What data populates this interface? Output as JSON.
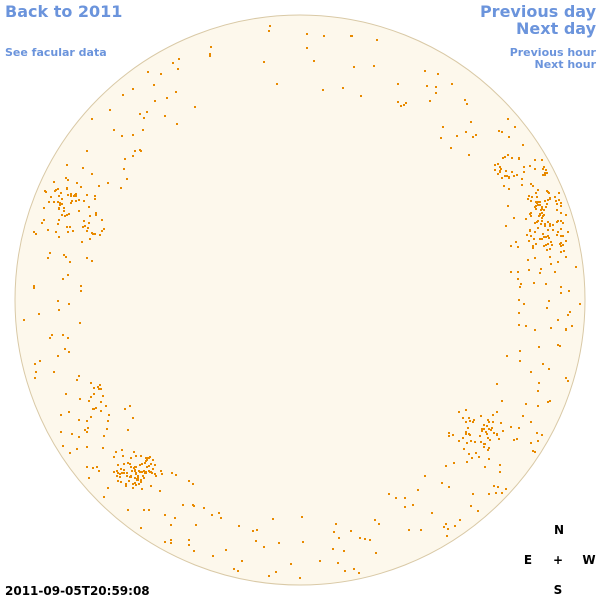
{
  "nav": {
    "back": "Back to 2011",
    "facular": "See facular data",
    "previous_day": "Previous day",
    "next_day": "Next day",
    "previous_hour": "Previous hour",
    "next_hour": "Next hour"
  },
  "timestamp": "2011-09-05T20:59:08",
  "compass": {
    "north": "N",
    "east": "E",
    "center": "+",
    "west": "W",
    "south": "S"
  }
}
